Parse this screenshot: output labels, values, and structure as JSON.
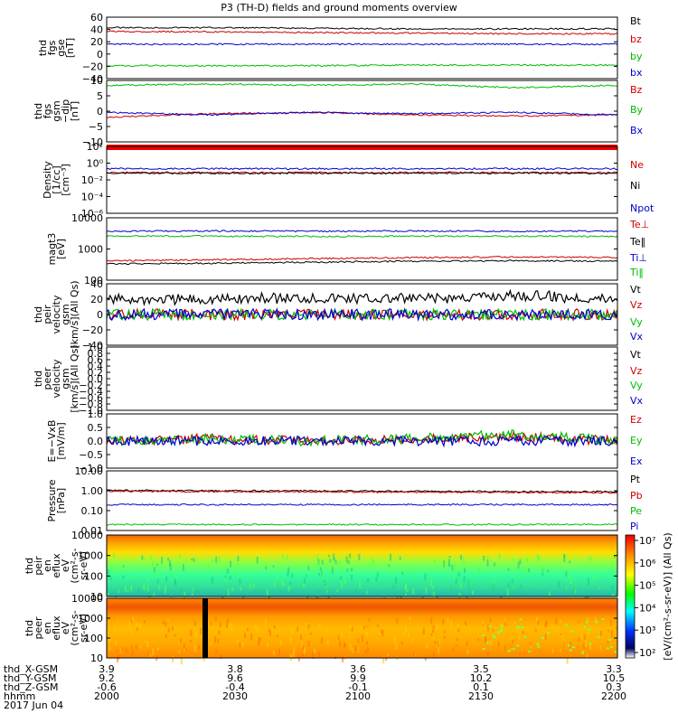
{
  "title": "P3 (TH-D) fields and ground moments overview",
  "footer": {
    "rows": [
      {
        "label": "thd_X-GSM",
        "values": [
          "3.9",
          "3.8",
          "3.6",
          "3.5",
          "3.3"
        ]
      },
      {
        "label": "thd_Y-GSM",
        "values": [
          "9.2",
          "9.6",
          "9.9",
          "10.2",
          "10.5"
        ]
      },
      {
        "label": "thd_Z-GSM",
        "values": [
          "-0.6",
          "-0.4",
          "-0.1",
          "0.1",
          "0.3"
        ]
      },
      {
        "label": "hhmm",
        "values": [
          "2000",
          "2030",
          "2100",
          "2130",
          "2200"
        ]
      }
    ],
    "date": "2017 Jun 04"
  },
  "colorbar": {
    "label": "[eV/(cm²-s-sr-eV)] (All Qs)",
    "ticks": [
      "10²",
      "10³",
      "10⁴",
      "10⁵",
      "10⁶",
      "10⁷"
    ]
  },
  "chart_data": [
    {
      "type": "line",
      "panel": "fgs_gse",
      "ylabel": [
        "thd",
        "fgs",
        "gse",
        "[nT]"
      ],
      "ylim": [
        -40,
        60
      ],
      "ticks": [
        "60",
        "40",
        "20",
        "0",
        "−20",
        "−40"
      ],
      "series": [
        {
          "name": "Bt",
          "color": "#000000",
          "values": [
            43,
            43,
            42,
            41,
            41,
            41
          ]
        },
        {
          "name": "bz",
          "color": "#cc0000",
          "values": [
            37,
            36,
            35,
            34,
            33,
            33
          ]
        },
        {
          "name": "by",
          "color": "#00bb00",
          "values": [
            -19,
            -19,
            -19,
            -18,
            -18,
            -18
          ]
        },
        {
          "name": "bx",
          "color": "#0000cc",
          "values": [
            16,
            16,
            16,
            16,
            16,
            16
          ]
        }
      ]
    },
    {
      "type": "line",
      "panel": "fgs_gsm_dip",
      "ylabel": [
        "thd",
        "fgs",
        "gsm",
        "−dip",
        "[nT]"
      ],
      "ylim": [
        -15,
        10
      ],
      "ticks": [
        "10",
        "5",
        "0",
        "−5",
        "−10"
      ],
      "series": [
        {
          "name": "Bz",
          "color": "#cc0000",
          "values": [
            -5,
            -3.5,
            -3,
            -4,
            -4.5,
            -4
          ]
        },
        {
          "name": "By",
          "color": "#00bb00",
          "values": [
            8,
            8.5,
            8,
            8.5,
            7,
            8
          ]
        },
        {
          "name": "Bx",
          "color": "#0000cc",
          "values": [
            -3,
            -4,
            -3,
            -3.5,
            -3,
            -4
          ]
        }
      ]
    },
    {
      "type": "line",
      "panel": "density",
      "ylabel": [
        "Density",
        "[1/cc]",
        "[cm⁻³]"
      ],
      "scale": "log",
      "ylim": [
        1e-06,
        1000.0
      ],
      "ticks": [
        "10²",
        "10⁰",
        "10⁻²",
        "10⁻⁴",
        "10⁻⁶"
      ],
      "series": [
        {
          "name": "Ne",
          "color": "#cc0000",
          "values": [
            0.3,
            0.3,
            0.3,
            0.3,
            0.3,
            0.3
          ]
        },
        {
          "name": "Ni",
          "color": "#000000",
          "values": [
            0.25,
            0.25,
            0.25,
            0.25,
            0.25,
            0.25
          ]
        },
        {
          "name": "Npot",
          "color": "#0000cc",
          "values": [
            1,
            1,
            1,
            1,
            1,
            1
          ]
        }
      ]
    },
    {
      "type": "line",
      "panel": "temperature",
      "ylabel": [
        "magt3",
        "[eV]"
      ],
      "scale": "log",
      "ylim": [
        100,
        20000
      ],
      "ticks": [
        "10000",
        "1000",
        "100"
      ],
      "series": [
        {
          "name": "Te⊥",
          "color": "#cc0000",
          "values": [
            520,
            560,
            620,
            680,
            720,
            690
          ]
        },
        {
          "name": "Te‖",
          "color": "#000000",
          "values": [
            400,
            420,
            460,
            500,
            520,
            500
          ]
        },
        {
          "name": "Ti⊥",
          "color": "#0000cc",
          "values": [
            6400,
            6500,
            6400,
            6500,
            6400,
            6500
          ]
        },
        {
          "name": "Ti‖",
          "color": "#00bb00",
          "values": [
            4200,
            4200,
            4100,
            4200,
            4200,
            4100
          ]
        }
      ]
    },
    {
      "type": "line",
      "panel": "peir_velocity",
      "ylabel": [
        "thd",
        "peir",
        "velocity",
        "gsm",
        "[km/s](All Qs)"
      ],
      "ylim": [
        -40,
        40
      ],
      "ticks": [
        "40",
        "20",
        "0",
        "−20",
        "−40"
      ],
      "series": [
        {
          "name": "Vt",
          "color": "#000000",
          "values": [
            20,
            20,
            22,
            20,
            25,
            20
          ]
        },
        {
          "name": "Vz",
          "color": "#cc0000",
          "values": [
            0,
            0,
            0,
            0,
            0,
            0
          ]
        },
        {
          "name": "Vy",
          "color": "#00bb00",
          "values": [
            0,
            0,
            0,
            0,
            0,
            0
          ]
        },
        {
          "name": "Vx",
          "color": "#0000cc",
          "values": [
            0,
            0,
            0,
            0,
            0,
            0
          ]
        }
      ]
    },
    {
      "type": "line",
      "panel": "peer_velocity",
      "ylabel": [
        "thd",
        "peer",
        "velocity",
        "gsm",
        "[km/s](All Qs)"
      ],
      "ylim": [
        -1,
        1
      ],
      "ticks": [
        "1.0",
        "0.8",
        "0.6",
        "0.4",
        "0.2",
        "0.0",
        "−0.2",
        "−0.4",
        "−0.6",
        "−0.8",
        "−1.0"
      ],
      "legend": [
        {
          "name": "Vt",
          "color": "#000000"
        },
        {
          "name": "Vz",
          "color": "#cc0000"
        },
        {
          "name": "Vy",
          "color": "#00bb00"
        },
        {
          "name": "Vx",
          "color": "#0000cc"
        }
      ]
    },
    {
      "type": "line",
      "panel": "efield",
      "ylabel": [
        "E=−VxB",
        "[mV/m]"
      ],
      "ylim": [
        -1.2,
        1.2
      ],
      "ticks": [
        "1.0",
        "0.5",
        "0.0",
        "−0.5",
        "−1.0"
      ],
      "series": [
        {
          "name": "Ez",
          "color": "#cc0000",
          "values": [
            0,
            0.1,
            0,
            0.05,
            0.2,
            0
          ]
        },
        {
          "name": "Ey",
          "color": "#00bb00",
          "values": [
            0,
            0.1,
            0,
            0.1,
            0.3,
            0
          ]
        },
        {
          "name": "Ex",
          "color": "#0000cc",
          "values": [
            0,
            0,
            0,
            0,
            0,
            0
          ]
        }
      ]
    },
    {
      "type": "line",
      "panel": "pressure",
      "ylabel": [
        "Pressure",
        "[nPa]"
      ],
      "scale": "log",
      "ylim": [
        0.01,
        10
      ],
      "ticks": [
        "10.00",
        "1.00",
        "0.10",
        "0.01"
      ],
      "series": [
        {
          "name": "Pt",
          "color": "#000000",
          "values": [
            1.05,
            1.0,
            0.98,
            0.95,
            0.92,
            0.9
          ]
        },
        {
          "name": "Pb",
          "color": "#cc0000",
          "values": [
            0.95,
            0.9,
            0.88,
            0.85,
            0.82,
            0.8
          ]
        },
        {
          "name": "Pe",
          "color": "#00bb00",
          "values": [
            0.02,
            0.02,
            0.02,
            0.02,
            0.02,
            0.02
          ]
        },
        {
          "name": "Pi",
          "color": "#0000cc",
          "values": [
            0.2,
            0.2,
            0.2,
            0.2,
            0.2,
            0.2
          ]
        }
      ]
    },
    {
      "type": "heatmap",
      "panel": "peir_eflux",
      "ylabel": [
        "thd",
        "peir",
        "en",
        "eflux",
        "eV",
        "(cm²-s-",
        "sr-eV)"
      ],
      "scale": "log",
      "ylim": [
        7,
        20000
      ],
      "ticks": [
        "10000",
        "1000",
        "100",
        "10"
      ]
    },
    {
      "type": "heatmap",
      "panel": "peer_eflux",
      "ylabel": [
        "thd",
        "peer",
        "en",
        "eflux",
        "eV",
        "(cm²-s-",
        "sr-eV)"
      ],
      "scale": "log",
      "ylim": [
        7,
        20000
      ],
      "ticks": [
        "10000",
        "1000",
        "100",
        "10"
      ]
    }
  ]
}
